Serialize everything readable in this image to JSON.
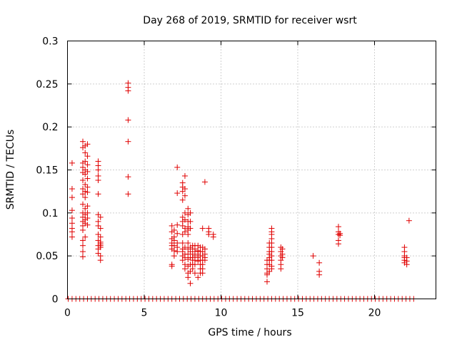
{
  "chart_data": {
    "type": "scatter",
    "title": "Day 268 of 2019, SRMTID for receiver wsrt",
    "xlabel": "GPS time / hours",
    "ylabel": "SRMTID / TECUs",
    "xlim": [
      0,
      24
    ],
    "ylim": [
      0,
      0.3
    ],
    "xticks": [
      0,
      5,
      10,
      15,
      20
    ],
    "yticks": [
      0,
      0.05,
      0.1,
      0.15,
      0.2,
      0.25,
      0.3
    ],
    "xtick_labels": [
      "0",
      "5",
      "10",
      "15",
      "20"
    ],
    "ytick_labels": [
      "0",
      "0.05",
      "0.1",
      "0.15",
      "0.2",
      "0.25",
      "0.3"
    ],
    "grid": true,
    "marker": "plus",
    "color": "#e00000",
    "series": [
      {
        "points": [
          [
            0.3,
            0.158
          ],
          [
            0.3,
            0.128
          ],
          [
            0.3,
            0.118
          ],
          [
            0.3,
            0.103
          ],
          [
            0.3,
            0.094
          ],
          [
            0.3,
            0.088
          ],
          [
            0.3,
            0.082
          ],
          [
            0.3,
            0.078
          ],
          [
            0.3,
            0.072
          ],
          [
            1.0,
            0.183
          ],
          [
            1.0,
            0.176
          ],
          [
            1.0,
            0.158
          ],
          [
            1.0,
            0.153
          ],
          [
            1.0,
            0.147
          ],
          [
            1.0,
            0.138
          ],
          [
            1.0,
            0.128
          ],
          [
            1.0,
            0.122
          ],
          [
            1.0,
            0.11
          ],
          [
            1.0,
            0.1
          ],
          [
            1.0,
            0.095
          ],
          [
            1.0,
            0.09
          ],
          [
            1.0,
            0.085
          ],
          [
            1.0,
            0.08
          ],
          [
            1.0,
            0.068
          ],
          [
            1.0,
            0.062
          ],
          [
            1.0,
            0.055
          ],
          [
            1.0,
            0.049
          ],
          [
            1.15,
            0.178
          ],
          [
            1.15,
            0.17
          ],
          [
            1.15,
            0.16
          ],
          [
            1.15,
            0.15
          ],
          [
            1.15,
            0.145
          ],
          [
            1.15,
            0.133
          ],
          [
            1.15,
            0.125
          ],
          [
            1.15,
            0.118
          ],
          [
            1.15,
            0.105
          ],
          [
            1.15,
            0.098
          ],
          [
            1.15,
            0.092
          ],
          [
            1.15,
            0.088
          ],
          [
            1.15,
            0.072
          ],
          [
            1.3,
            0.18
          ],
          [
            1.3,
            0.166
          ],
          [
            1.3,
            0.156
          ],
          [
            1.3,
            0.148
          ],
          [
            1.3,
            0.14
          ],
          [
            1.3,
            0.13
          ],
          [
            1.3,
            0.124
          ],
          [
            1.3,
            0.108
          ],
          [
            1.3,
            0.1
          ],
          [
            1.3,
            0.094
          ],
          [
            1.3,
            0.086
          ],
          [
            2.0,
            0.16
          ],
          [
            2.0,
            0.155
          ],
          [
            2.0,
            0.15
          ],
          [
            2.0,
            0.143
          ],
          [
            2.0,
            0.138
          ],
          [
            2.0,
            0.122
          ],
          [
            2.0,
            0.098
          ],
          [
            2.0,
            0.09
          ],
          [
            2.0,
            0.085
          ],
          [
            2.0,
            0.075
          ],
          [
            2.0,
            0.068
          ],
          [
            2.0,
            0.062
          ],
          [
            2.0,
            0.058
          ],
          [
            2.0,
            0.053
          ],
          [
            2.15,
            0.095
          ],
          [
            2.15,
            0.082
          ],
          [
            2.15,
            0.072
          ],
          [
            2.15,
            0.066
          ],
          [
            2.15,
            0.064
          ],
          [
            2.15,
            0.062
          ],
          [
            2.15,
            0.06
          ],
          [
            2.15,
            0.05
          ],
          [
            2.15,
            0.045
          ],
          [
            3.95,
            0.251
          ],
          [
            3.95,
            0.246
          ],
          [
            3.95,
            0.242
          ],
          [
            3.95,
            0.208
          ],
          [
            3.95,
            0.183
          ],
          [
            3.95,
            0.142
          ],
          [
            3.95,
            0.122
          ],
          [
            6.8,
            0.085
          ],
          [
            6.8,
            0.078
          ],
          [
            6.8,
            0.07
          ],
          [
            6.8,
            0.065
          ],
          [
            6.8,
            0.062
          ],
          [
            6.8,
            0.058
          ],
          [
            6.8,
            0.04
          ],
          [
            6.8,
            0.038
          ],
          [
            6.95,
            0.08
          ],
          [
            6.95,
            0.072
          ],
          [
            6.95,
            0.068
          ],
          [
            6.95,
            0.062
          ],
          [
            6.95,
            0.056
          ],
          [
            6.95,
            0.05
          ],
          [
            7.15,
            0.153
          ],
          [
            7.15,
            0.123
          ],
          [
            7.15,
            0.086
          ],
          [
            7.15,
            0.076
          ],
          [
            7.15,
            0.065
          ],
          [
            7.15,
            0.06
          ],
          [
            7.15,
            0.055
          ],
          [
            7.5,
            0.135
          ],
          [
            7.5,
            0.13
          ],
          [
            7.5,
            0.125
          ],
          [
            7.5,
            0.115
          ],
          [
            7.5,
            0.095
          ],
          [
            7.5,
            0.09
          ],
          [
            7.5,
            0.085
          ],
          [
            7.5,
            0.075
          ],
          [
            7.5,
            0.065
          ],
          [
            7.5,
            0.058
          ],
          [
            7.5,
            0.055
          ],
          [
            7.5,
            0.05
          ],
          [
            7.5,
            0.045
          ],
          [
            7.65,
            0.143
          ],
          [
            7.65,
            0.128
          ],
          [
            7.65,
            0.12
          ],
          [
            7.65,
            0.1
          ],
          [
            7.65,
            0.092
          ],
          [
            7.65,
            0.082
          ],
          [
            7.65,
            0.078
          ],
          [
            7.65,
            0.06
          ],
          [
            7.65,
            0.052
          ],
          [
            7.65,
            0.048
          ],
          [
            7.65,
            0.04
          ],
          [
            7.65,
            0.035
          ],
          [
            7.85,
            0.105
          ],
          [
            7.85,
            0.098
          ],
          [
            7.85,
            0.09
          ],
          [
            7.85,
            0.084
          ],
          [
            7.85,
            0.08
          ],
          [
            7.85,
            0.075
          ],
          [
            7.85,
            0.065
          ],
          [
            7.85,
            0.058
          ],
          [
            7.85,
            0.052
          ],
          [
            7.85,
            0.046
          ],
          [
            7.85,
            0.038
          ],
          [
            7.85,
            0.03
          ],
          [
            7.85,
            0.025
          ],
          [
            8.0,
            0.1
          ],
          [
            8.0,
            0.09
          ],
          [
            8.0,
            0.082
          ],
          [
            8.0,
            0.06
          ],
          [
            8.0,
            0.055
          ],
          [
            8.0,
            0.048
          ],
          [
            8.0,
            0.04
          ],
          [
            8.0,
            0.032
          ],
          [
            8.0,
            0.018
          ],
          [
            8.15,
            0.062
          ],
          [
            8.15,
            0.058
          ],
          [
            8.15,
            0.052
          ],
          [
            8.15,
            0.048
          ],
          [
            8.15,
            0.045
          ],
          [
            8.15,
            0.04
          ],
          [
            8.15,
            0.035
          ],
          [
            8.3,
            0.062
          ],
          [
            8.3,
            0.058
          ],
          [
            8.3,
            0.055
          ],
          [
            8.3,
            0.05
          ],
          [
            8.3,
            0.045
          ],
          [
            8.3,
            0.04
          ],
          [
            8.3,
            0.03
          ],
          [
            8.5,
            0.062
          ],
          [
            8.5,
            0.056
          ],
          [
            8.5,
            0.052
          ],
          [
            8.5,
            0.048
          ],
          [
            8.5,
            0.044
          ],
          [
            8.5,
            0.025
          ],
          [
            8.65,
            0.06
          ],
          [
            8.65,
            0.055
          ],
          [
            8.65,
            0.05
          ],
          [
            8.65,
            0.045
          ],
          [
            8.65,
            0.04
          ],
          [
            8.65,
            0.035
          ],
          [
            8.65,
            0.03
          ],
          [
            8.8,
            0.082
          ],
          [
            8.8,
            0.06
          ],
          [
            8.8,
            0.055
          ],
          [
            8.8,
            0.05
          ],
          [
            8.8,
            0.045
          ],
          [
            8.8,
            0.04
          ],
          [
            8.8,
            0.035
          ],
          [
            8.8,
            0.03
          ],
          [
            8.95,
            0.136
          ],
          [
            8.95,
            0.058
          ],
          [
            8.95,
            0.052
          ],
          [
            8.95,
            0.048
          ],
          [
            8.95,
            0.045
          ],
          [
            9.2,
            0.082
          ],
          [
            9.2,
            0.078
          ],
          [
            9.2,
            0.075
          ],
          [
            9.5,
            0.075
          ],
          [
            9.5,
            0.072
          ],
          [
            13.0,
            0.045
          ],
          [
            13.0,
            0.04
          ],
          [
            13.0,
            0.035
          ],
          [
            13.0,
            0.03
          ],
          [
            13.0,
            0.028
          ],
          [
            13.0,
            0.02
          ],
          [
            13.15,
            0.065
          ],
          [
            13.15,
            0.06
          ],
          [
            13.15,
            0.055
          ],
          [
            13.15,
            0.052
          ],
          [
            13.15,
            0.048
          ],
          [
            13.15,
            0.045
          ],
          [
            13.15,
            0.04
          ],
          [
            13.15,
            0.032
          ],
          [
            13.3,
            0.082
          ],
          [
            13.3,
            0.078
          ],
          [
            13.3,
            0.075
          ],
          [
            13.3,
            0.07
          ],
          [
            13.3,
            0.065
          ],
          [
            13.3,
            0.06
          ],
          [
            13.3,
            0.055
          ],
          [
            13.3,
            0.05
          ],
          [
            13.3,
            0.045
          ],
          [
            13.3,
            0.038
          ],
          [
            13.3,
            0.035
          ],
          [
            13.9,
            0.06
          ],
          [
            13.9,
            0.055
          ],
          [
            13.9,
            0.05
          ],
          [
            13.9,
            0.045
          ],
          [
            13.9,
            0.04
          ],
          [
            13.9,
            0.035
          ],
          [
            14.0,
            0.058
          ],
          [
            14.0,
            0.052
          ],
          [
            14.0,
            0.048
          ],
          [
            16.0,
            0.05
          ],
          [
            16.4,
            0.042
          ],
          [
            16.4,
            0.032
          ],
          [
            16.4,
            0.028
          ],
          [
            17.65,
            0.084
          ],
          [
            17.65,
            0.078
          ],
          [
            17.65,
            0.075
          ],
          [
            17.65,
            0.068
          ],
          [
            17.65,
            0.064
          ],
          [
            17.75,
            0.076
          ],
          [
            17.75,
            0.074
          ],
          [
            21.95,
            0.06
          ],
          [
            21.95,
            0.055
          ],
          [
            21.95,
            0.05
          ],
          [
            21.95,
            0.048
          ],
          [
            21.95,
            0.045
          ],
          [
            21.95,
            0.042
          ],
          [
            22.1,
            0.048
          ],
          [
            22.1,
            0.044
          ],
          [
            22.1,
            0.04
          ],
          [
            22.25,
            0.091
          ]
        ],
        "zero_points_x": [
          0.05,
          0.3,
          0.55,
          0.8,
          1.05,
          1.3,
          1.55,
          1.8,
          2.05,
          2.3,
          2.55,
          2.8,
          3.05,
          3.3,
          3.55,
          3.8,
          4.05,
          4.3,
          4.55,
          4.8,
          5.05,
          5.3,
          5.55,
          5.8,
          6.05,
          6.3,
          6.55,
          6.8,
          7.05,
          7.3,
          7.55,
          7.8,
          8.05,
          8.3,
          8.55,
          8.8,
          9.05,
          9.3,
          9.55,
          9.8,
          10.05,
          10.3,
          10.55,
          10.8,
          11.05,
          11.3,
          11.55,
          11.8,
          12.05,
          12.3,
          12.55,
          12.8,
          13.05,
          13.3,
          13.55,
          13.8,
          14.05,
          14.3,
          14.55,
          14.8,
          15.05,
          15.3,
          15.55,
          15.8,
          16.05,
          16.3,
          16.55,
          16.8,
          17.05,
          17.3,
          17.55,
          17.8,
          18.05,
          18.3,
          18.55,
          18.8,
          19.05,
          19.3,
          19.55,
          19.8,
          20.05,
          20.3,
          20.55,
          20.8,
          21.05,
          21.3,
          21.55,
          21.8,
          22.05,
          22.3,
          22.55
        ]
      }
    ]
  }
}
